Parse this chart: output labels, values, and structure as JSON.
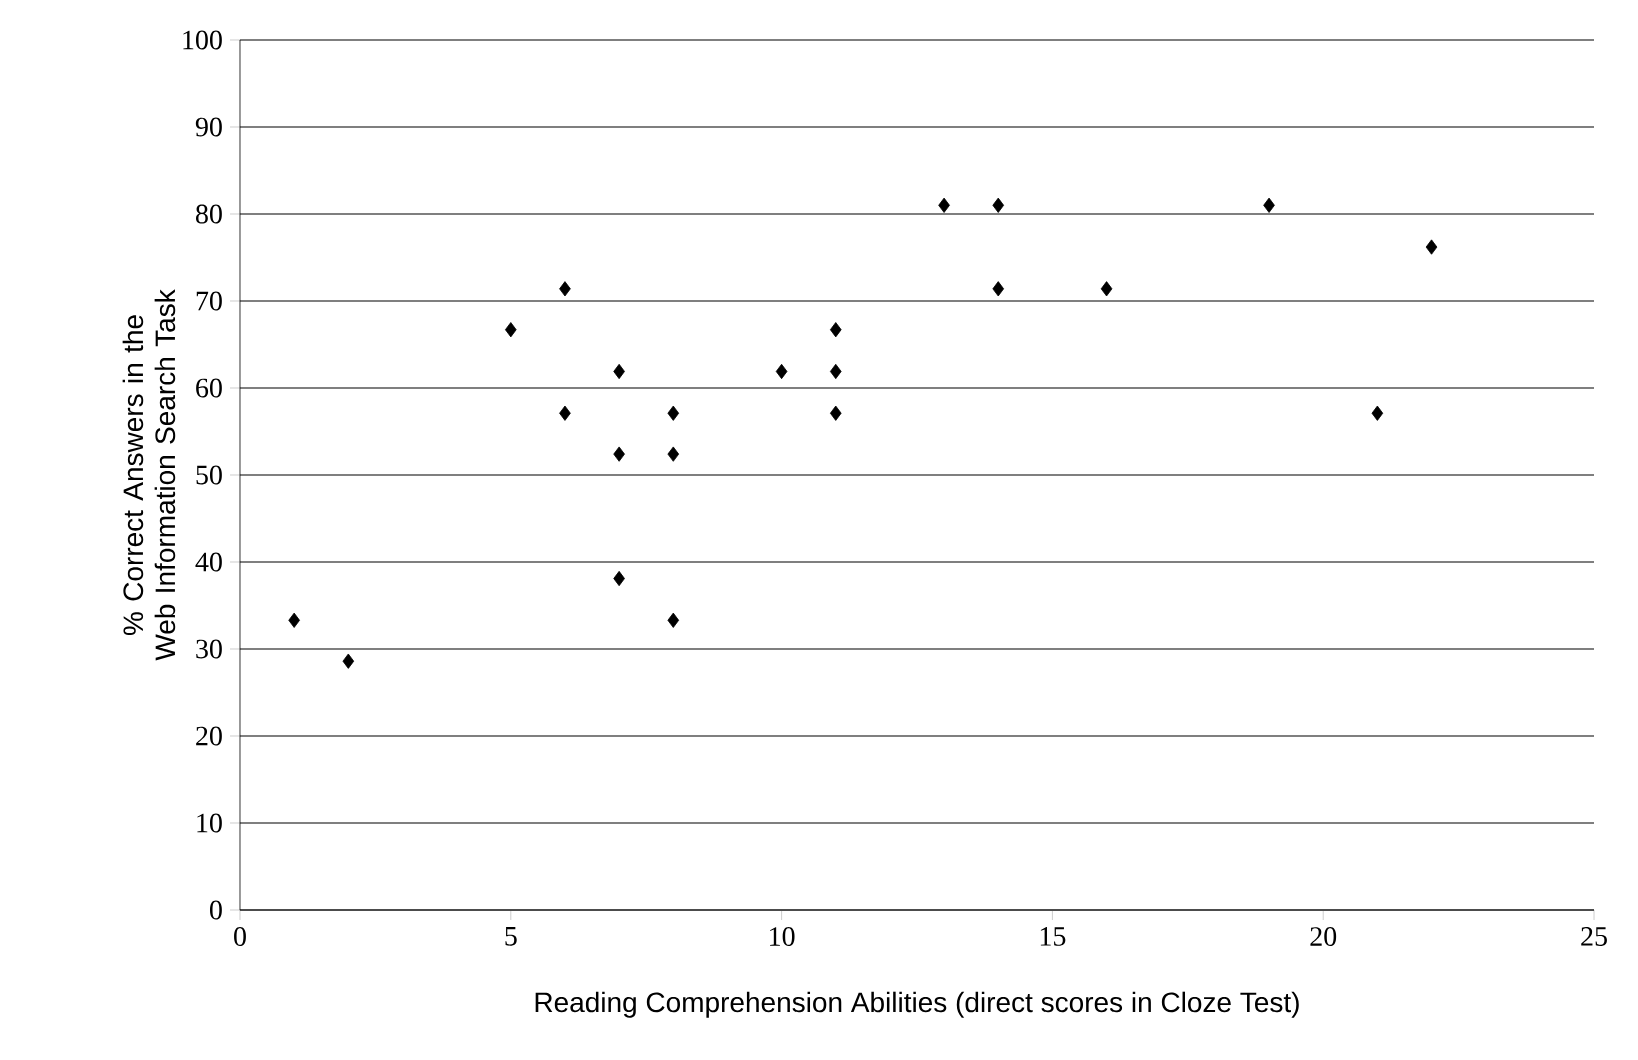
{
  "chart_data": {
    "type": "scatter",
    "xlabel": "Reading Comprehension Abilities (direct scores in Cloze Test)",
    "ylabel": "% Correct Answers in the Web Information Search Task",
    "x": [
      1,
      2,
      5,
      6,
      6,
      7,
      7,
      7,
      8,
      8,
      8,
      10,
      11,
      11,
      11,
      13,
      14,
      14,
      16,
      19,
      21,
      22
    ],
    "values": [
      33.3,
      28.6,
      66.7,
      71.4,
      57.1,
      61.9,
      52.4,
      38.1,
      57.1,
      52.4,
      33.3,
      61.9,
      66.7,
      61.9,
      57.1,
      81,
      81,
      71.4,
      71.4,
      81,
      57.1,
      76.2
    ],
    "color": "#000000",
    "marker": "diamond",
    "grid": "y",
    "xlim": [
      0,
      25
    ],
    "xticks": [
      0,
      5,
      10,
      15,
      20,
      25
    ],
    "ylim": [
      0,
      100
    ],
    "yticks": [
      0,
      10,
      20,
      30,
      40,
      50,
      60,
      70,
      80,
      90,
      100
    ]
  }
}
